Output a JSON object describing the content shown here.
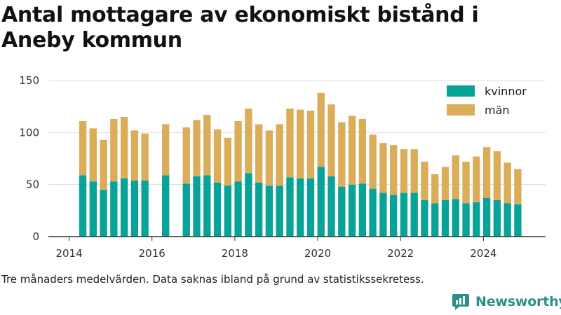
{
  "title": "Antal mottagare av ekonomiskt bistånd i Aneby kommun",
  "caption": "Tre månaders medelvärden. Data saknas ibland på grund av statistikssekretess.",
  "brand": "Newsworthy",
  "colors": {
    "kvinnor": "#07a398",
    "man": "#dbad58",
    "grid": "#dddddd",
    "axis": "#333333",
    "brand": "#2a8f8a"
  },
  "legend_position": "top-right",
  "chart_data": {
    "type": "bar",
    "stacked": true,
    "title": "Antal mottagare av ekonomiskt bistånd i Aneby kommun",
    "xlabel": "",
    "ylabel": "",
    "ylim": [
      0,
      150
    ],
    "yticks": [
      0,
      50,
      100,
      150
    ],
    "xticks": [
      2014,
      2016,
      2018,
      2020,
      2022,
      2024
    ],
    "xlim": [
      2013.5,
      2025.5
    ],
    "grid": true,
    "x": [
      2014.33,
      2014.58,
      2014.83,
      2015.08,
      2015.33,
      2015.58,
      2015.83,
      2016.33,
      2016.83,
      2017.08,
      2017.33,
      2017.58,
      2017.83,
      2018.08,
      2018.33,
      2018.58,
      2018.83,
      2019.08,
      2019.33,
      2019.58,
      2019.83,
      2020.08,
      2020.33,
      2020.58,
      2020.83,
      2021.08,
      2021.33,
      2021.58,
      2021.83,
      2022.08,
      2022.33,
      2022.58,
      2022.83,
      2023.08,
      2023.33,
      2023.58,
      2023.83,
      2024.08,
      2024.33,
      2024.58,
      2024.83
    ],
    "series": [
      {
        "name": "kvinnor",
        "values": [
          59,
          53,
          45,
          53,
          56,
          54,
          54,
          59,
          51,
          58,
          59,
          52,
          49,
          53,
          61,
          52,
          49,
          49,
          57,
          56,
          56,
          67,
          58,
          48,
          50,
          51,
          46,
          42,
          40,
          42,
          42,
          35,
          32,
          35,
          36,
          32,
          33,
          37,
          35,
          32,
          31
        ]
      },
      {
        "name": "män",
        "values": [
          52,
          51,
          48,
          60,
          59,
          48,
          45,
          49,
          54,
          54,
          58,
          51,
          46,
          58,
          62,
          56,
          53,
          59,
          66,
          66,
          65,
          71,
          69,
          62,
          66,
          62,
          52,
          48,
          48,
          42,
          42,
          37,
          28,
          32,
          42,
          40,
          44,
          49,
          47,
          39,
          34
        ]
      }
    ]
  }
}
